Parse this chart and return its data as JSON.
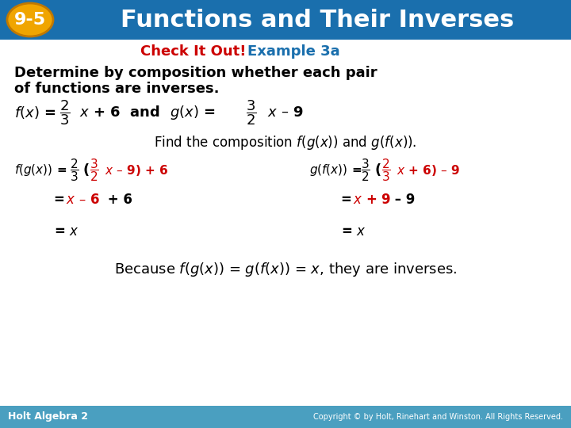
{
  "header_bg_color": "#1a6fad",
  "header_text": "Functions and Their Inverses",
  "header_text_color": "#ffffff",
  "badge_bg": "#f0a500",
  "badge_text": "9-5",
  "badge_text_color": "#ffffff",
  "footer_bg": "#4a9fc0",
  "footer_left": "Holt Algebra 2",
  "footer_right": "Copyright © by Holt, Rinehart and Winston. All Rights Reserved.",
  "footer_text_color": "#ffffff",
  "body_bg": "#ffffff",
  "red_color": "#cc0000",
  "blue_color": "#1a6fad",
  "black_color": "#000000"
}
